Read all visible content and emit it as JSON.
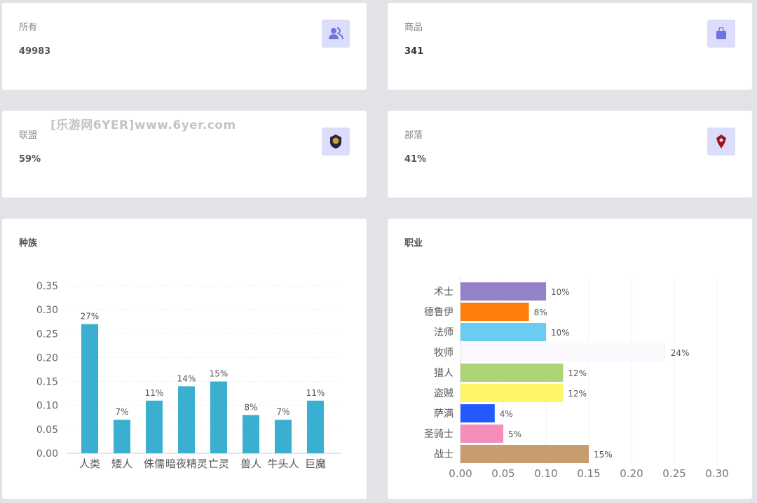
{
  "stats": [
    {
      "label": "所有",
      "value": "49983",
      "icon": "users-icon"
    },
    {
      "label": "商品",
      "value": "341",
      "icon": "shop-bag-icon"
    },
    {
      "label": "联盟",
      "value": "59%",
      "icon": "alliance-crest-icon"
    },
    {
      "label": "部落",
      "value": "41%",
      "icon": "horde-crest-icon"
    }
  ],
  "watermark": "[乐游网6YER]www.6yer.com",
  "colors": {
    "accent": "#3aafd0",
    "icon_bg": "#dcdcfb",
    "icon_fg": "#6f73e0"
  },
  "chart_data": [
    {
      "type": "bar",
      "title": "种族",
      "categories": [
        "人类",
        "矮人",
        "侏儒",
        "暗夜精灵",
        "亡灵",
        "兽人",
        "牛头人",
        "巨魔"
      ],
      "values": [
        0.27,
        0.07,
        0.11,
        0.14,
        0.15,
        0.08,
        0.07,
        0.11
      ],
      "data_labels": [
        "27%",
        "7%",
        "11%",
        "14%",
        "15%",
        "8%",
        "7%",
        "11%"
      ],
      "ylim": [
        0,
        0.35
      ],
      "yticks": [
        "0.00",
        "0.05",
        "0.10",
        "0.15",
        "0.20",
        "0.25",
        "0.30",
        "0.35"
      ],
      "color": "#3aafd0"
    },
    {
      "type": "bar",
      "orientation": "horizontal",
      "title": "职业",
      "categories": [
        "术士",
        "德鲁伊",
        "法师",
        "牧师",
        "猎人",
        "盗贼",
        "萨满",
        "圣骑士",
        "战士"
      ],
      "values": [
        0.1,
        0.08,
        0.1,
        0.24,
        0.12,
        0.12,
        0.04,
        0.05,
        0.15
      ],
      "data_labels": [
        "10%",
        "8%",
        "10%",
        "24%",
        "12%",
        "12%",
        "4%",
        "5%",
        "15%"
      ],
      "colors": [
        "#9482c9",
        "#ff7d0a",
        "#69ccf0",
        "#faf8fd",
        "#abd473",
        "#fff569",
        "#2459ff",
        "#f58cba",
        "#c79c6e"
      ],
      "xlim": [
        0,
        0.3
      ],
      "xticks": [
        "0.00",
        "0.05",
        "0.10",
        "0.15",
        "0.20",
        "0.25",
        "0.30"
      ]
    }
  ]
}
